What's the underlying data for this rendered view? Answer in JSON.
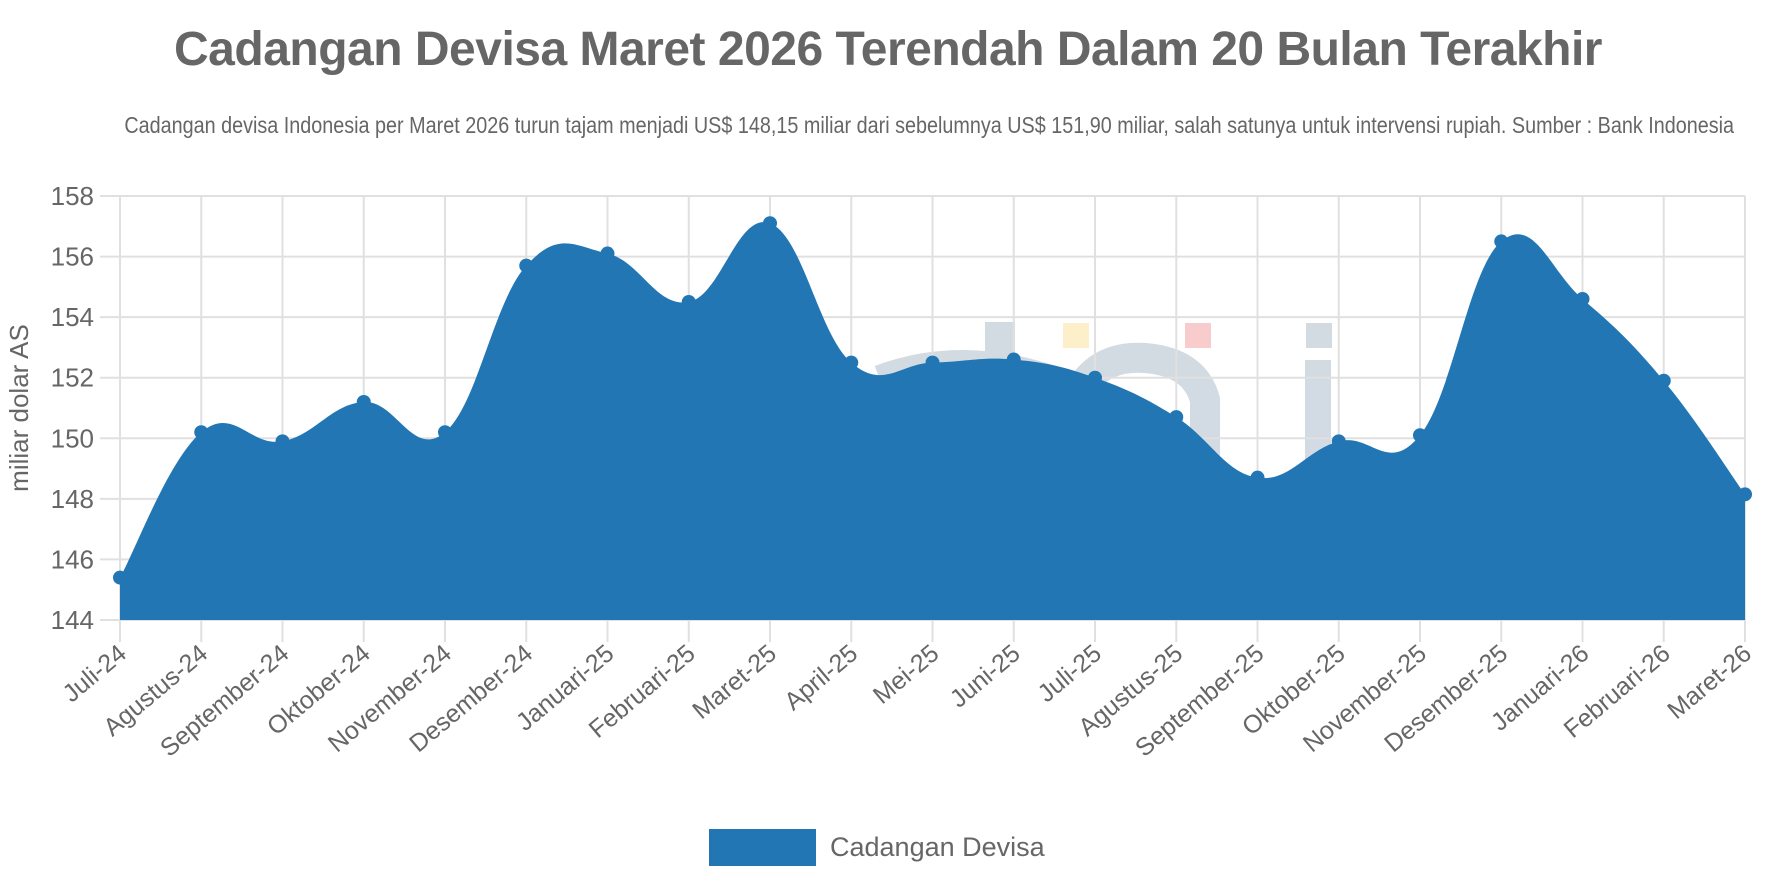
{
  "header": {
    "title": "Cadangan Devisa Maret 2026 Terendah Dalam 20 Bulan Terakhir",
    "subtitle": "Cadangan devisa Indonesia per Maret 2026 turun tajam menjadi US$ 148,15 miliar dari sebelumnya US$ 151,90 miliar, salah satunya untuk intervensi rupiah. Sumber : Bank Indonesia"
  },
  "legend": {
    "label": "Cadangan Devisa",
    "color": "#2276b4"
  },
  "colors": {
    "series": "#2276b4",
    "grid": "#e0e0e0",
    "text": "#666666"
  },
  "chart_data": {
    "type": "area",
    "title": "Cadangan Devisa Maret 2026 Terendah Dalam 20 Bulan Terakhir",
    "subtitle": "Cadangan devisa Indonesia per Maret 2026 turun tajam menjadi US$ 148,15 miliar dari sebelumnya US$ 151,90 miliar, salah satunya untuk intervensi rupiah. Sumber : Bank Indonesia",
    "xlabel": "",
    "ylabel": "miliar dolar AS",
    "ylim": [
      144,
      158
    ],
    "yticks": [
      144,
      146,
      148,
      150,
      152,
      154,
      156,
      158
    ],
    "grid": true,
    "legend_position": "bottom",
    "categories": [
      "Juli-24",
      "Agustus-24",
      "September-24",
      "Oktober-24",
      "November-24",
      "Desember-24",
      "Januari-25",
      "Februari-25",
      "Maret-25",
      "April-25",
      "Mei-25",
      "Juni-25",
      "Juli-25",
      "Agustus-25",
      "September-25",
      "Oktober-25",
      "November-25",
      "Desember-25",
      "Januari-26",
      "Februari-26",
      "Maret-26"
    ],
    "series": [
      {
        "name": "Cadangan Devisa",
        "values": [
          145.4,
          150.2,
          149.9,
          151.2,
          150.2,
          155.7,
          156.1,
          154.5,
          157.1,
          152.5,
          152.5,
          152.6,
          152.0,
          150.7,
          148.7,
          149.9,
          150.1,
          156.5,
          154.6,
          151.9,
          148.15
        ]
      }
    ]
  }
}
